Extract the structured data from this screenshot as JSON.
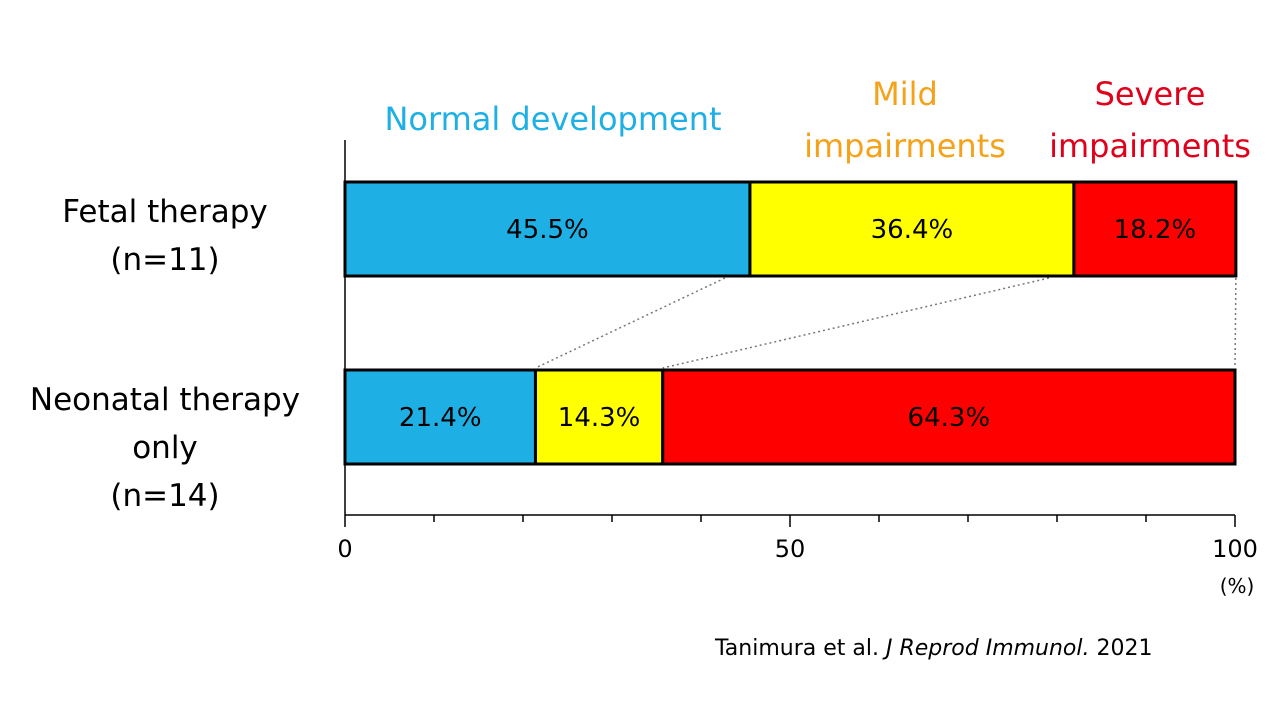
{
  "chart_data": {
    "type": "bar",
    "orientation": "horizontal",
    "stacked": true,
    "categories": [
      {
        "lines": [
          "Fetal therapy",
          "(n=11)"
        ]
      },
      {
        "lines": [
          "Neonatal therapy",
          "only",
          "(n=14)"
        ]
      }
    ],
    "series": [
      {
        "name": "Normal development",
        "legend_lines": [
          "Normal development"
        ],
        "color": "#1eb0e4",
        "values": [
          45.5,
          21.4
        ],
        "labels": [
          "45.5%",
          "21.4%"
        ]
      },
      {
        "name": "Mild impairments",
        "legend_lines": [
          "Mild",
          "impairments"
        ],
        "color": "#ffff00",
        "legend_color": "#f5a21a",
        "values": [
          36.4,
          14.3
        ],
        "labels": [
          "36.4%",
          "14.3%"
        ]
      },
      {
        "name": "Severe impairments",
        "legend_lines": [
          "Severe",
          "impairments"
        ],
        "color": "#ff0000",
        "legend_color": "#e0001b",
        "values": [
          18.2,
          64.3
        ],
        "labels": [
          "18.2%",
          "64.3%"
        ]
      }
    ],
    "xlim": [
      0,
      100
    ],
    "xticks": [
      0,
      50,
      100
    ],
    "minor_tick_step": 10,
    "xunit": "(%)",
    "connector_lines": true,
    "grid": false,
    "legend_placement": "top"
  },
  "citation": {
    "authors": "Tanimura et al.",
    "journal": "J Reprod Immunol.",
    "year": "2021"
  }
}
